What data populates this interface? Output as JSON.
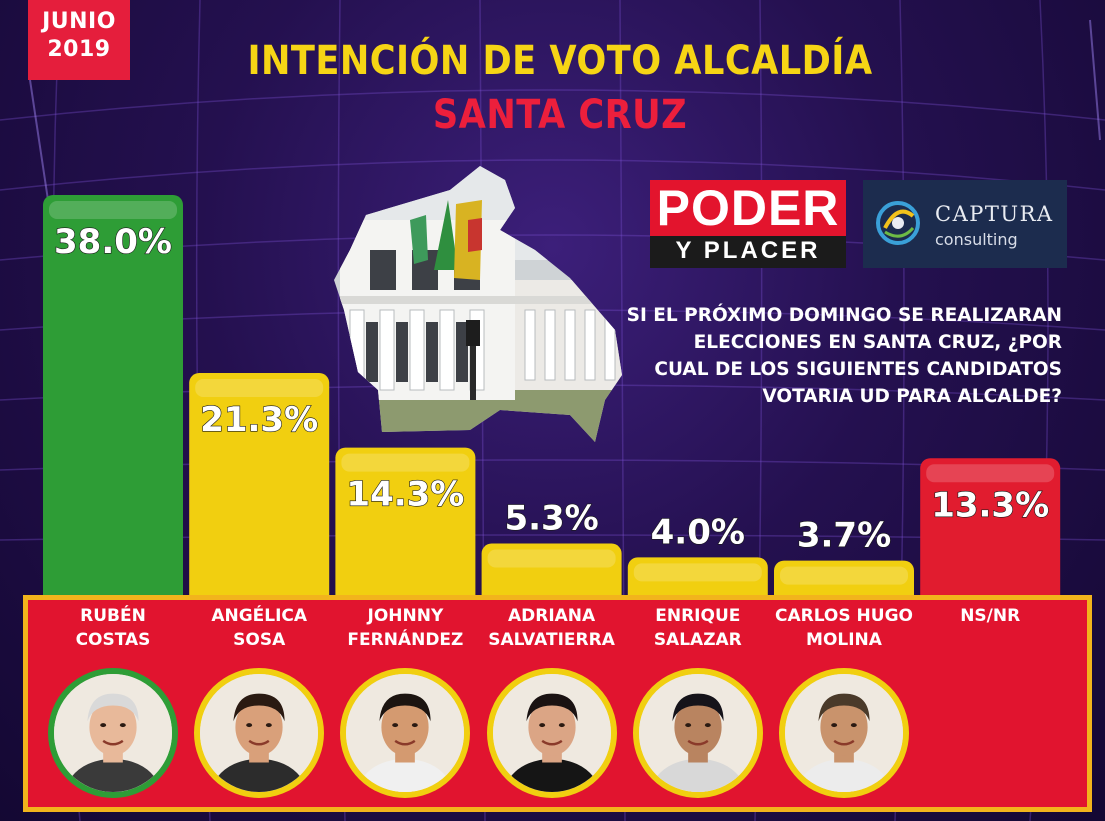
{
  "header": {
    "date_month": "JUNIO",
    "date_year": "2019",
    "title_line1": "INTENCIÓN DE VOTO ALCALDÍA",
    "title_line2": "SANTA CRUZ"
  },
  "logos": {
    "poder_top": "PODER",
    "poder_bottom": "Y PLACER",
    "captura_name": "CAPTURA",
    "captura_sub": "consulting"
  },
  "question": [
    "SI EL PRÓXIMO DOMINGO SE REALIZARAN",
    "ELECCIONES EN SANTA CRUZ, ¿POR",
    "CUAL DE LOS SIGUIENTES CANDIDATOS",
    "VOTARIA UD PARA ALCALDE?"
  ],
  "colors": {
    "green": "#2e9d36",
    "yellow": "#f1cf10",
    "red": "#e11c2f",
    "panel_border": "#f2b41c"
  },
  "chart_data": {
    "type": "bar",
    "title": "INTENCIÓN DE VOTO ALCALDÍA",
    "subtitle": "SANTA CRUZ",
    "categories": [
      "RUBÉN COSTAS",
      "ANGÉLICA SOSA",
      "JOHNNY FERNÁNDEZ",
      "ADRIANA SALVATIERRA",
      "ENRIQUE SALAZAR",
      "CARLOS HUGO MOLINA",
      "NS/NR"
    ],
    "values": [
      38.0,
      21.3,
      14.3,
      5.3,
      4.0,
      3.7,
      13.3
    ],
    "labels": [
      "38.0%",
      "21.3%",
      "14.3%",
      "5.3%",
      "4.0%",
      "3.7%",
      "13.3%"
    ],
    "bar_colors": [
      "#2e9d36",
      "#f1cf10",
      "#f1cf10",
      "#f1cf10",
      "#f1cf10",
      "#f1cf10",
      "#e11c2f"
    ],
    "ylim": [
      0,
      40
    ],
    "unit": "%"
  },
  "candidates": [
    {
      "line1": "RUBÉN",
      "line2": "COSTAS",
      "ring": "#2e9d36",
      "photo": true
    },
    {
      "line1": "ANGÉLICA",
      "line2": "SOSA",
      "ring": "#f1cf10",
      "photo": true
    },
    {
      "line1": "JOHNNY",
      "line2": "FERNÁNDEZ",
      "ring": "#f1cf10",
      "photo": true
    },
    {
      "line1": "ADRIANA",
      "line2": "SALVATIERRA",
      "ring": "#f1cf10",
      "photo": true
    },
    {
      "line1": "ENRIQUE",
      "line2": "SALAZAR",
      "ring": "#f1cf10",
      "photo": true
    },
    {
      "line1": "CARLOS HUGO",
      "line2": "MOLINA",
      "ring": "#f1cf10",
      "photo": true
    },
    {
      "line1": "NS/NR",
      "line2": "",
      "ring": "",
      "photo": false
    }
  ]
}
